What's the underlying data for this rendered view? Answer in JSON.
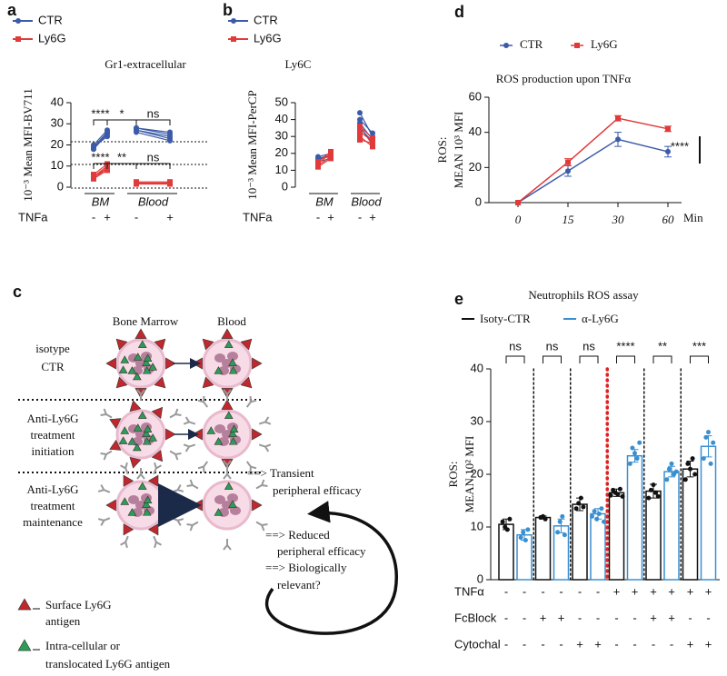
{
  "chart_data": [
    {
      "label": "a",
      "type": "paired-line",
      "title": "Gr1-extracellular",
      "ylabel": "10⁻³ Mean MFI-BV711",
      "groups": [
        "BM",
        "Blood"
      ],
      "condition_label": "TNFa",
      "conditions": [
        "-",
        "+"
      ],
      "series": [
        {
          "name": "CTR",
          "color": "#3b5ba9",
          "marker": "circle",
          "values": [
            [
              [
                18,
                25
              ],
              [
                19,
                26
              ],
              [
                20,
                27
              ],
              [
                19,
                24
              ],
              [
                18,
                26
              ]
            ],
            [
              [
                27,
                24
              ],
              [
                28,
                25
              ],
              [
                27,
                23
              ],
              [
                28,
                26
              ],
              [
                26,
                22
              ]
            ]
          ]
        },
        {
          "name": "Ly6G",
          "color": "#e03a3a",
          "marker": "square",
          "values": [
            [
              [
                4,
                9
              ],
              [
                5,
                10
              ],
              [
                4,
                8
              ],
              [
                6,
                11
              ],
              [
                5,
                9
              ]
            ],
            [
              [
                1.5,
                1.5
              ],
              [
                2,
                2
              ],
              [
                2.5,
                2.5
              ],
              [
                1.5,
                2
              ],
              [
                2,
                1.5
              ]
            ]
          ]
        }
      ],
      "annotations": [
        "****",
        "*",
        "ns",
        "****",
        "**",
        "ns"
      ],
      "ylim": [
        0,
        40
      ],
      "yticks": [
        0,
        10,
        20,
        30,
        40
      ]
    },
    {
      "label": "b",
      "type": "paired-line",
      "title": "Ly6C",
      "ylabel": "10⁻³ Mean MFI-PerCP",
      "groups": [
        "BM",
        "Blood"
      ],
      "condition_label": "TNFa",
      "conditions": [
        "-",
        "+"
      ],
      "series": [
        {
          "name": "CTR",
          "color": "#3b5ba9",
          "marker": "circle",
          "values": [
            [
              [
                17,
                18
              ],
              [
                16,
                19
              ],
              [
                18,
                20
              ],
              [
                15,
                17
              ],
              [
                17,
                19
              ]
            ],
            [
              [
                44,
                30
              ],
              [
                38,
                28
              ],
              [
                35,
                27
              ],
              [
                40,
                32
              ],
              [
                36,
                25
              ]
            ]
          ]
        },
        {
          "name": "Ly6G",
          "color": "#e03a3a",
          "marker": "square",
          "values": [
            [
              [
                13,
                18
              ],
              [
                14,
                20
              ],
              [
                12,
                17
              ],
              [
                15,
                21
              ]
            ],
            [
              [
                33,
                27
              ],
              [
                30,
                24
              ],
              [
                36,
                29
              ],
              [
                28,
                26
              ]
            ]
          ]
        }
      ],
      "ylim": [
        0,
        50
      ],
      "yticks": [
        0,
        10,
        20,
        30,
        40,
        50
      ]
    },
    {
      "label": "d",
      "type": "line",
      "title": "ROS production upon TNFα",
      "ylabel": [
        "ROS:",
        "MEAN 10³ MFI"
      ],
      "categories": [
        "0",
        "15",
        "30",
        "60"
      ],
      "xlabel": "Min",
      "series": [
        {
          "name": "CTR",
          "color": "#3b5ba9",
          "marker": "circle",
          "values": [
            0,
            18,
            36,
            29
          ],
          "errors": [
            0,
            3,
            4,
            3
          ]
        },
        {
          "name": "Ly6G",
          "color": "#e03a3a",
          "marker": "square",
          "values": [
            0,
            23,
            48,
            42
          ],
          "errors": [
            0,
            2,
            1.5,
            1.5
          ]
        }
      ],
      "annotations": [
        "****"
      ],
      "ylim": [
        0,
        60
      ],
      "yticks": [
        0,
        20,
        40,
        60
      ]
    },
    {
      "label": "e",
      "type": "bar",
      "title": "Neutrophils ROS assay",
      "ylabel": [
        "ROS:",
        "MEAN 10² MFI"
      ],
      "series": [
        {
          "name": "Isoty-CTR",
          "color": "#111111",
          "values": [
            10.5,
            11.8,
            14.3,
            16.5,
            16.8,
            21
          ],
          "errors": [
            1,
            0.3,
            1.2,
            0.7,
            1.3,
            1.5
          ],
          "points": [
            [
              11,
              10,
              9.5,
              11.5
            ],
            [
              11.8,
              12,
              11.5
            ],
            [
              13.5,
              14.5,
              15.5,
              13.8
            ],
            [
              16,
              17,
              16.5,
              16.2,
              17.2,
              15.8
            ],
            [
              15.5,
              17,
              18,
              16.5,
              15.8
            ],
            [
              19,
              22,
              21,
              23,
              20
            ]
          ]
        },
        {
          "name": "α-Ly6G",
          "color": "#3a8fd0",
          "values": [
            8.5,
            10.2,
            12.5,
            23.5,
            20.5,
            25.3
          ],
          "errors": [
            1,
            1.3,
            1,
            1.2,
            1,
            2
          ],
          "points": [
            [
              8,
              9,
              7.5,
              9.5
            ],
            [
              9,
              11,
              12,
              8.5
            ],
            [
              12,
              13,
              11.5,
              12.5,
              13.5,
              11
            ],
            [
              22,
              25,
              24,
              23,
              26
            ],
            [
              19,
              21,
              22,
              20,
              20.5
            ],
            [
              23,
              27,
              28,
              22,
              26
            ]
          ]
        }
      ],
      "condition_rows": [
        {
          "name": "TNFα",
          "signs": [
            "-",
            "-",
            "-",
            "-",
            "-",
            "-",
            "+",
            "+",
            "+",
            "+",
            "+",
            "+"
          ]
        },
        {
          "name": "FcBlock",
          "signs": [
            "-",
            "-",
            "+",
            "+",
            "-",
            "-",
            "-",
            "-",
            "+",
            "+",
            "-",
            "-"
          ]
        },
        {
          "name": "Cytochal",
          "signs": [
            "-",
            "-",
            "-",
            "-",
            "+",
            "+",
            "-",
            "-",
            "-",
            "-",
            "+",
            "+"
          ]
        }
      ],
      "annotations": [
        "ns",
        "ns",
        "ns",
        "****",
        "**",
        "***"
      ],
      "ylim": [
        0,
        40
      ],
      "yticks": [
        0,
        10,
        20,
        30,
        40
      ]
    }
  ],
  "diagram": {
    "label": "c",
    "columns": [
      "Bone Marrow",
      "Blood"
    ],
    "rows": [
      [
        "isotype",
        "CTR"
      ],
      [
        "Anti-Ly6G",
        "treatment",
        "initiation"
      ],
      [
        "Anti-Ly6G",
        "treatment",
        "maintenance"
      ]
    ],
    "outcomes": [
      [
        "==> Transient",
        "peripheral efficacy"
      ],
      [
        "==> Reduced",
        "peripheral efficacy",
        "==> Biologically",
        "relevant?"
      ]
    ],
    "legend": [
      [
        "Surface Ly6G",
        "antigen"
      ],
      [
        "Intra-cellular or",
        "translocated Ly6G antigen"
      ]
    ]
  }
}
